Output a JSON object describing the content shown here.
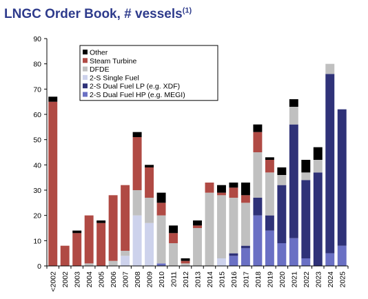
{
  "title": "LNGC Order Book, # vessels",
  "title_footnote": "(1)",
  "colors": {
    "Other": "#000000",
    "Steam Turbine": "#b04a44",
    "DFDE": "#c0c0c0",
    "2-S Single Fuel": "#cdd2ec",
    "2-S Dual Fuel LP": "#2f3278",
    "2-S Dual Fuel HP": "#6a70c4"
  },
  "chart_data": {
    "type": "bar",
    "stacked": true,
    "title": "LNGC Order Book, # vessels",
    "xlabel": "",
    "ylabel": "",
    "ylim": [
      0,
      90
    ],
    "yticks": [
      0,
      10,
      20,
      30,
      40,
      50,
      60,
      70,
      80,
      90
    ],
    "grid": false,
    "legend_position": "top-left",
    "categories": [
      "<2002",
      "2002",
      "2003",
      "2004",
      "2005",
      "2006",
      "2007",
      "2008",
      "2009",
      "2010",
      "2011",
      "2012",
      "2013",
      "2014",
      "2015",
      "2016",
      "2017",
      "2018",
      "2019",
      "2020",
      "2021",
      "2022",
      "2023",
      "2024",
      "2025"
    ],
    "series": [
      {
        "name": "2-S Dual Fuel HP (e.g. MEGI)",
        "values": [
          0,
          0,
          0,
          0,
          0,
          0,
          0,
          0,
          0,
          1,
          0,
          0,
          0,
          0,
          0,
          4,
          7,
          20,
          14,
          9,
          11,
          3,
          0,
          5,
          8
        ]
      },
      {
        "name": "2-S Dual Fuel LP (e.g. XDF)",
        "values": [
          0,
          0,
          0,
          0,
          0,
          0,
          0,
          0,
          0,
          0,
          0,
          0,
          0,
          0,
          0,
          1,
          1,
          7,
          6,
          23,
          45,
          31,
          37,
          71,
          54
        ]
      },
      {
        "name": "2-S Single Fuel",
        "values": [
          0,
          0,
          0,
          0,
          0,
          0,
          4,
          20,
          17,
          0,
          0,
          0,
          0,
          0,
          3,
          0,
          0,
          0,
          0,
          0,
          0,
          0,
          0,
          0,
          0
        ]
      },
      {
        "name": "DFDE",
        "values": [
          0,
          0,
          0,
          1,
          0,
          2,
          2,
          10,
          10,
          19,
          9,
          1,
          15,
          29,
          25,
          22,
          17,
          18,
          17,
          4,
          7,
          3,
          5,
          4,
          0
        ]
      },
      {
        "name": "Steam Turbine",
        "values": [
          65,
          8,
          13,
          19,
          17,
          26,
          26,
          21,
          12,
          5,
          4,
          1,
          1,
          4,
          1,
          4,
          3,
          8,
          5,
          0,
          0,
          0,
          0,
          0,
          0
        ]
      },
      {
        "name": "Other",
        "values": [
          2,
          0,
          1,
          0,
          1,
          0,
          0,
          2,
          1,
          4,
          3,
          1,
          2,
          0,
          3,
          2,
          5,
          3,
          1,
          3,
          3,
          5,
          5,
          0,
          0
        ]
      }
    ]
  }
}
